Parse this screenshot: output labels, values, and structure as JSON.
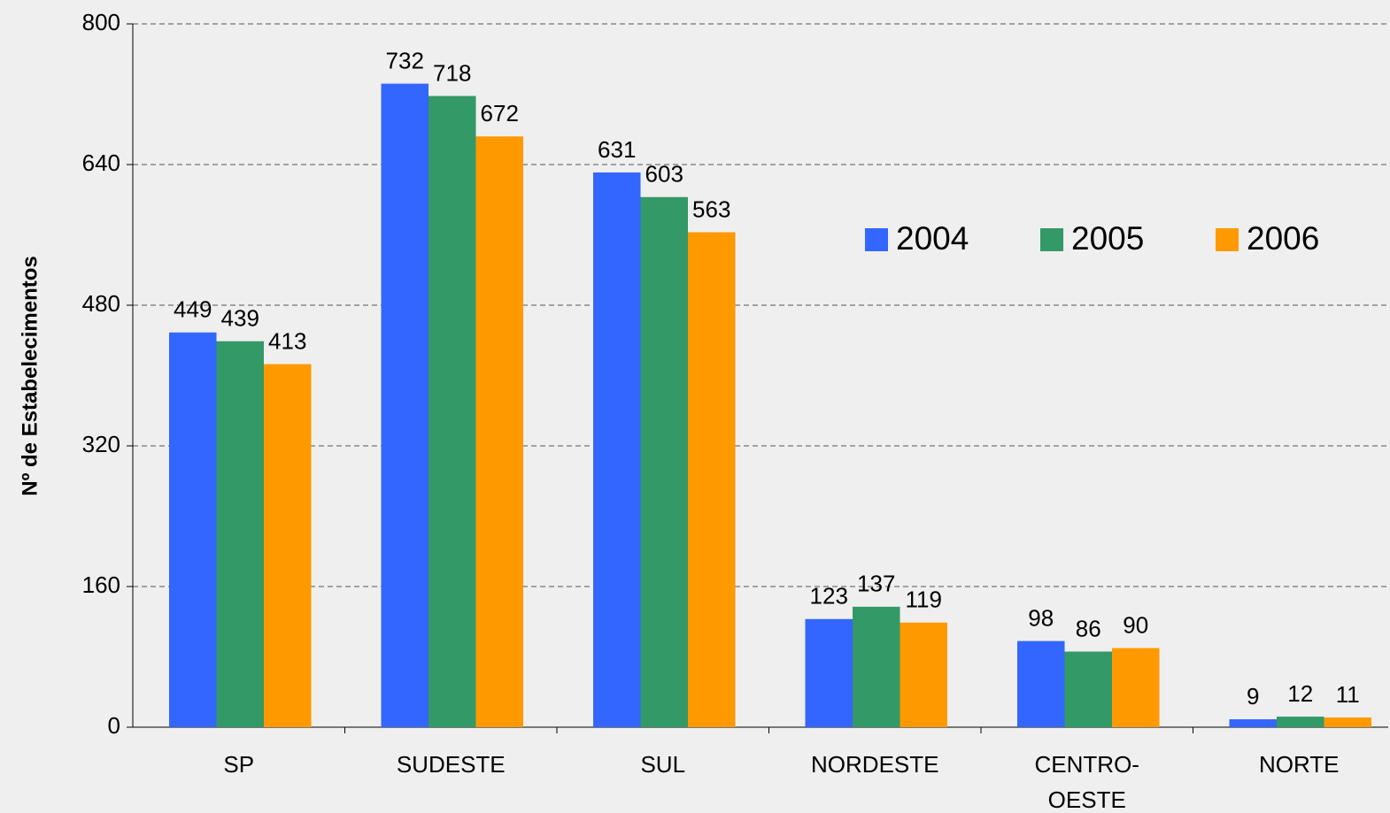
{
  "chart_data": {
    "type": "bar",
    "y_label": "Nº de Estabelecimentos",
    "categories": [
      "SP",
      "SUDESTE",
      "SUL",
      "NORDESTE",
      "CENTRO-OESTE",
      "NORTE"
    ],
    "series": [
      {
        "name": "2004",
        "color": "#3366ff",
        "values": [
          449,
          732,
          631,
          123,
          98,
          9
        ]
      },
      {
        "name": "2005",
        "color": "#339966",
        "values": [
          439,
          718,
          603,
          137,
          86,
          12
        ]
      },
      {
        "name": "2006",
        "color": "#ff9900",
        "values": [
          413,
          672,
          563,
          119,
          90,
          11
        ]
      }
    ],
    "ylim": [
      0,
      800
    ],
    "yticks": [
      0,
      160,
      320,
      480,
      640,
      800
    ],
    "grid": true,
    "legend": "top-right"
  }
}
